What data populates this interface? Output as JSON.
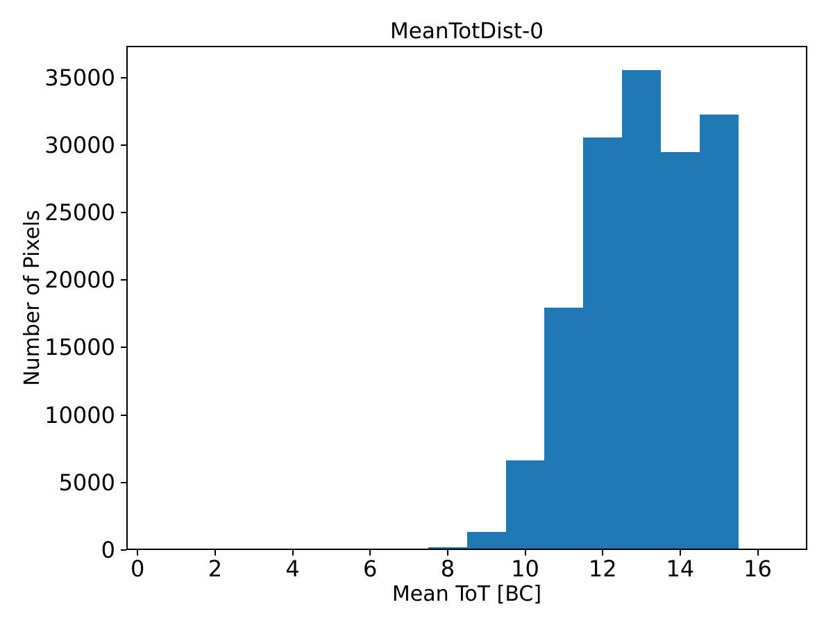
{
  "chart_data": {
    "type": "bar",
    "subtype": "histogram",
    "title": "MeanTotDist-0",
    "xlabel": "Mean ToT [BC]",
    "ylabel": "Number of Pixels",
    "bar_color": "#1f77b4",
    "background_color": "#ffffff",
    "grid": false,
    "legend": null,
    "bin_edges": [
      7.5,
      8.5,
      9.5,
      10.5,
      11.5,
      12.5,
      13.5,
      14.5,
      15.5
    ],
    "values": [
      220,
      1350,
      6640,
      17950,
      30550,
      35550,
      29470,
      32270
    ],
    "x_ticks": [
      0,
      2,
      4,
      6,
      8,
      10,
      12,
      14,
      16
    ],
    "y_ticks": [
      0,
      5000,
      10000,
      15000,
      20000,
      25000,
      30000,
      35000
    ],
    "xlim": [
      -0.29,
      17.28
    ],
    "ylim": [
      0,
      37340
    ]
  }
}
